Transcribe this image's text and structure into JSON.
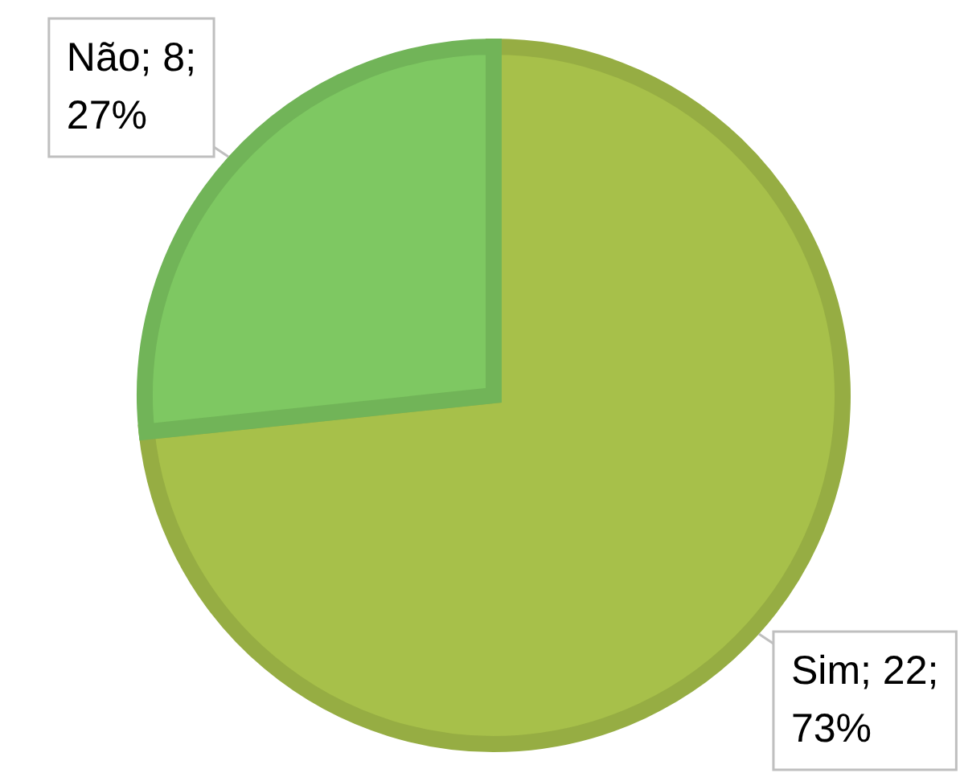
{
  "chart_data": {
    "type": "pie",
    "categories": [
      "Sim",
      "Não"
    ],
    "values": [
      22,
      8
    ],
    "colors": [
      "#a7c04a",
      "#7ec862"
    ],
    "value_labels": [
      "22;\n73%",
      "8;\n27%"
    ]
  }
}
